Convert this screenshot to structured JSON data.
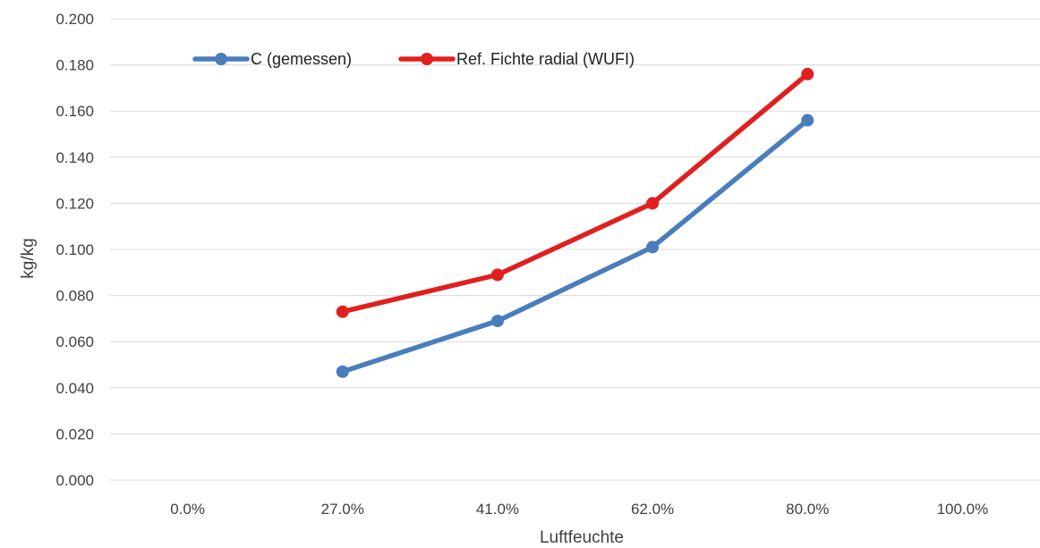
{
  "chart_data": {
    "type": "line",
    "categories": [
      "0.0%",
      "27.0%",
      "41.0%",
      "62.0%",
      "80.0%",
      "100.0%"
    ],
    "series": [
      {
        "name": "C (gemessen)",
        "color": "#4a7ebb",
        "values": [
          null,
          0.047,
          0.069,
          0.101,
          0.156,
          null
        ]
      },
      {
        "name": "Ref. Fichte radial (WUFI)",
        "color": "#e02020",
        "values": [
          null,
          0.073,
          0.089,
          0.12,
          0.176,
          null
        ]
      }
    ],
    "ylim": [
      0,
      0.2
    ],
    "yticks": [
      "0.000",
      "0.020",
      "0.040",
      "0.060",
      "0.080",
      "0.100",
      "0.120",
      "0.140",
      "0.160",
      "0.180",
      "0.200"
    ],
    "xlabel": "Luftfeuchte",
    "ylabel": "kg/kg",
    "grid": true,
    "legend": "top-left"
  }
}
